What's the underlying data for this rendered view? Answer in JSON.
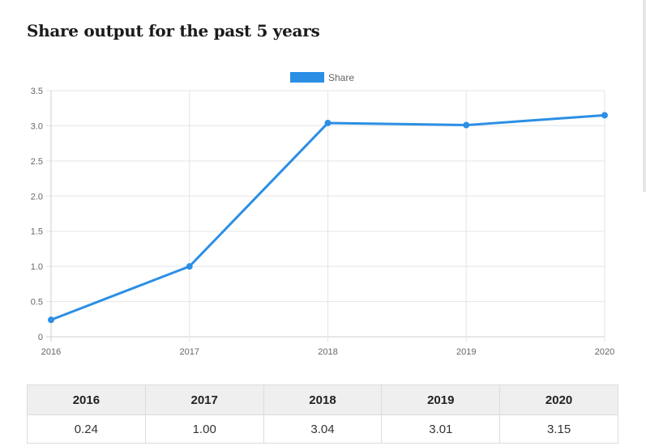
{
  "page": {
    "title": "Share output for the past 5 years"
  },
  "colors": {
    "series": "#2b8fe5",
    "grid": "#e5e5e5",
    "axis": "#cfcfcf",
    "tick_text": "#666666"
  },
  "chart_data": {
    "type": "line",
    "title": "",
    "xlabel": "",
    "ylabel": "",
    "categories": [
      "2016",
      "2017",
      "2018",
      "2019",
      "2020"
    ],
    "series": [
      {
        "name": "Share",
        "values": [
          0.24,
          1.0,
          3.04,
          3.01,
          3.15
        ]
      }
    ],
    "ylim": [
      0,
      3.5
    ],
    "yticks": [
      "0",
      "0.5",
      "1.0",
      "1.5",
      "2.0",
      "2.5",
      "3.0",
      "3.5"
    ],
    "grid": true,
    "legend": "top-center"
  },
  "table": {
    "headers": [
      "2016",
      "2017",
      "2018",
      "2019",
      "2020"
    ],
    "values": [
      "0.24",
      "1.00",
      "3.04",
      "3.01",
      "3.15"
    ]
  }
}
